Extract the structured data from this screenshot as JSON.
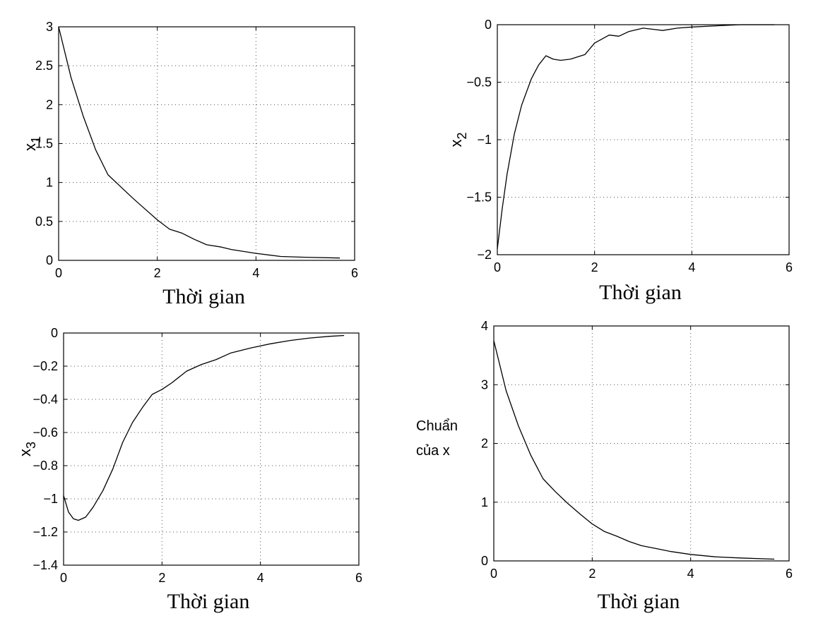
{
  "chart_data": [
    {
      "type": "line",
      "xlabel": "Thời gian",
      "ylabel": "x",
      "ylabel_sub": "1",
      "xlim": [
        0,
        6
      ],
      "ylim": [
        0,
        3
      ],
      "xticks": [
        "0",
        "2",
        "4",
        "6"
      ],
      "yticks": [
        "0",
        "0.5",
        "1",
        "1.5",
        "2",
        "2.5",
        "3"
      ],
      "grid": true,
      "series": [
        {
          "x": [
            0,
            0.25,
            0.5,
            0.75,
            1.0,
            1.25,
            1.5,
            1.75,
            2.0,
            2.25,
            2.5,
            2.75,
            3.0,
            3.3,
            3.5,
            4.0,
            4.5,
            5.0,
            5.7
          ],
          "y": [
            3.0,
            2.35,
            1.85,
            1.42,
            1.1,
            0.95,
            0.8,
            0.66,
            0.52,
            0.4,
            0.35,
            0.27,
            0.2,
            0.17,
            0.14,
            0.09,
            0.05,
            0.04,
            0.03
          ]
        }
      ]
    },
    {
      "type": "line",
      "xlabel": "Thời gian",
      "ylabel": "x",
      "ylabel_sub": "2",
      "xlim": [
        0,
        6
      ],
      "ylim": [
        -2,
        0
      ],
      "xticks": [
        "0",
        "2",
        "4",
        "6"
      ],
      "yticks": [
        "−2",
        "−1.5",
        "−1",
        "−0.5",
        "0"
      ],
      "grid": true,
      "series": [
        {
          "x": [
            0,
            0.1,
            0.2,
            0.35,
            0.5,
            0.7,
            0.85,
            1.0,
            1.15,
            1.3,
            1.5,
            1.8,
            2.0,
            2.3,
            2.5,
            2.7,
            3.0,
            3.2,
            3.4,
            3.7,
            4.0,
            4.5,
            5.0,
            5.7
          ],
          "y": [
            -1.95,
            -1.6,
            -1.3,
            -0.95,
            -0.7,
            -0.47,
            -0.35,
            -0.27,
            -0.3,
            -0.31,
            -0.3,
            -0.26,
            -0.16,
            -0.09,
            -0.1,
            -0.06,
            -0.03,
            -0.04,
            -0.05,
            -0.03,
            -0.02,
            -0.01,
            0.0,
            0.0
          ]
        }
      ]
    },
    {
      "type": "line",
      "xlabel": "Thời gian",
      "ylabel": "x",
      "ylabel_sub": "3",
      "xlim": [
        0,
        6
      ],
      "ylim": [
        -1.4,
        0
      ],
      "xticks": [
        "0",
        "2",
        "4",
        "6"
      ],
      "yticks": [
        "−1.4",
        "−1.2",
        "−1",
        "−0.8",
        "−0.6",
        "−0.4",
        "−0.2",
        "0"
      ],
      "grid": true,
      "series": [
        {
          "x": [
            0,
            0.1,
            0.2,
            0.3,
            0.45,
            0.6,
            0.8,
            1.0,
            1.2,
            1.4,
            1.6,
            1.8,
            2.0,
            2.2,
            2.5,
            2.8,
            3.1,
            3.4,
            3.8,
            4.2,
            4.6,
            5.0,
            5.4,
            5.7
          ],
          "y": [
            -0.98,
            -1.08,
            -1.12,
            -1.13,
            -1.11,
            -1.05,
            -0.95,
            -0.82,
            -0.66,
            -0.54,
            -0.45,
            -0.37,
            -0.34,
            -0.3,
            -0.23,
            -0.19,
            -0.16,
            -0.12,
            -0.09,
            -0.065,
            -0.045,
            -0.03,
            -0.02,
            -0.015
          ]
        }
      ]
    },
    {
      "type": "line",
      "xlabel": "Thời gian",
      "ylabel": "Chuẩn",
      "ylabel_line2": "của x",
      "xlim": [
        0,
        6
      ],
      "ylim": [
        0,
        4
      ],
      "xticks": [
        "0",
        "2",
        "4",
        "6"
      ],
      "yticks": [
        "0",
        "1",
        "2",
        "3",
        "4"
      ],
      "grid": true,
      "series": [
        {
          "x": [
            0,
            0.25,
            0.5,
            0.75,
            1.0,
            1.25,
            1.5,
            1.75,
            2.0,
            2.25,
            2.5,
            2.75,
            3.0,
            3.3,
            3.6,
            4.0,
            4.5,
            5.0,
            5.7
          ],
          "y": [
            3.75,
            2.9,
            2.3,
            1.8,
            1.4,
            1.18,
            0.98,
            0.8,
            0.63,
            0.5,
            0.42,
            0.33,
            0.26,
            0.21,
            0.16,
            0.11,
            0.07,
            0.05,
            0.03
          ]
        }
      ]
    }
  ]
}
